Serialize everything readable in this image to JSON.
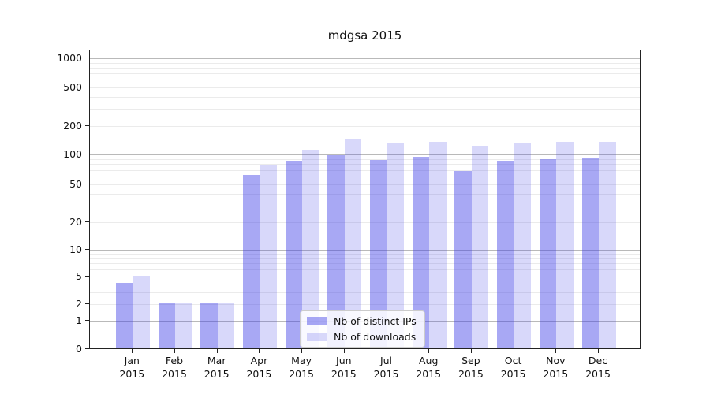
{
  "chart_data": {
    "type": "bar",
    "title": "mdgsa 2015",
    "categories": [
      "Jan",
      "Feb",
      "Mar",
      "Apr",
      "May",
      "Jun",
      "Jul",
      "Aug",
      "Sep",
      "Oct",
      "Nov",
      "Dec"
    ],
    "year_label": "2015",
    "series": [
      {
        "name": "Nb of distinct IPs",
        "color": "rgba(62,62,230,0.45)",
        "values": [
          4,
          2,
          2,
          61,
          85,
          96,
          86,
          93,
          67,
          85,
          88,
          90
        ]
      },
      {
        "name": "Nb of downloads",
        "color": "rgba(62,62,230,0.20)",
        "values": [
          5,
          2,
          2,
          77,
          110,
          141,
          128,
          134,
          121,
          128,
          134,
          134
        ]
      }
    ],
    "yscale": "log-like with 0 baseline",
    "y_tick_values": [
      1000,
      500,
      200,
      100,
      50,
      20,
      10,
      5,
      2,
      1,
      0
    ],
    "y_tick_labels": [
      "1000",
      "500",
      "200",
      "100",
      "50",
      "20",
      "10",
      "5",
      "2",
      "1",
      "0"
    ],
    "ylim": [
      0,
      1400
    ],
    "grid": "major gray lines at powers of 10, light minor log lines",
    "legend_position": "lower center inside plot",
    "colors": {
      "bar_ips": "rgba(62,62,230,0.45)",
      "bar_downloads": "rgba(62,62,230,0.20)",
      "grid_major": "#b9b9b9",
      "grid_minor": "#ebebeb",
      "spine": "#222222",
      "text": "#111111"
    }
  }
}
